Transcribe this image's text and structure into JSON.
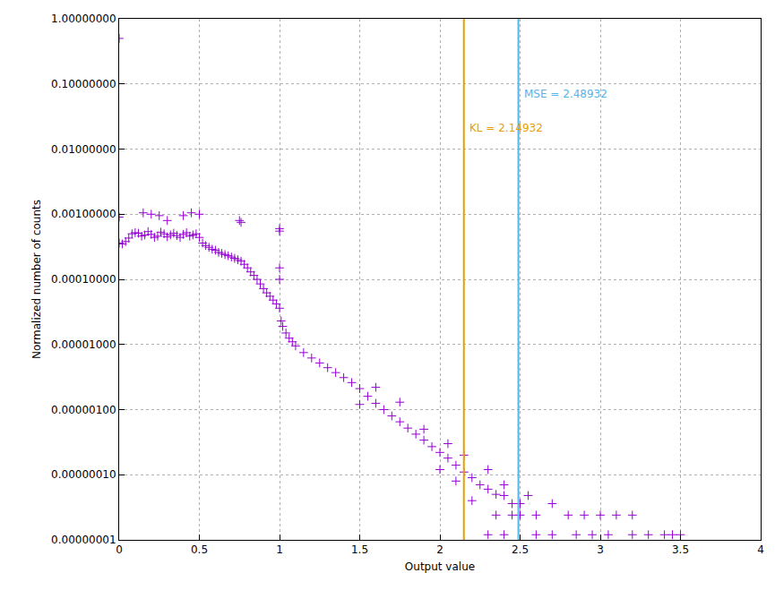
{
  "chart_data": {
    "type": "scatter",
    "x_label": "Output value",
    "y_label": "Normalized number of counts",
    "color": "#9400d3",
    "marker": "cross",
    "log": "y",
    "grid": true,
    "xlim": [
      0,
      4
    ],
    "xticks": [
      0,
      0.5,
      1,
      1.5,
      2,
      2.5,
      3,
      3.5,
      4
    ],
    "ylim": [
      1e-08,
      1
    ],
    "yticks": [
      {
        "value": 1e-08,
        "label": "0.00000001"
      },
      {
        "value": 1e-07,
        "label": "0.00000010"
      },
      {
        "value": 1e-06,
        "label": "0.00000100"
      },
      {
        "value": 1e-05,
        "label": "0.00001000"
      },
      {
        "value": 0.0001,
        "label": "0.00010000"
      },
      {
        "value": 0.001,
        "label": "0.00100000"
      },
      {
        "value": 0.01,
        "label": "0.01000000"
      },
      {
        "value": 0.1,
        "label": "0.10000000"
      },
      {
        "value": 1,
        "label": "1.00000000"
      }
    ],
    "annotations": [
      {
        "text": "KL = 2.14932",
        "x": 2.14932,
        "color": "#e69f00"
      },
      {
        "text": "MSE = 2.48932",
        "x": 2.48932,
        "color": "#56b4e9"
      }
    ],
    "x": [
      0,
      0.02,
      0.04,
      0.06,
      0.08,
      0.1,
      0.12,
      0.14,
      0.16,
      0.18,
      0.2,
      0.22,
      0.24,
      0.26,
      0.28,
      0.3,
      0.32,
      0.34,
      0.36,
      0.38,
      0.4,
      0.42,
      0.44,
      0.46,
      0.48,
      0.5,
      0.52,
      0.54,
      0.56,
      0.58,
      0.6,
      0.62,
      0.64,
      0.66,
      0.68,
      0.7,
      0.72,
      0.74,
      0.76,
      0.78,
      0.8,
      0.82,
      0.84,
      0.86,
      0.88,
      0.9,
      0.92,
      0.94,
      0.96,
      0.98,
      1.0,
      1.01,
      1.02,
      1.04,
      1.06,
      1.08,
      1.1,
      1.15,
      1.2,
      1.25,
      1.3,
      1.35,
      1.4,
      1.45,
      1.5,
      1.55,
      1.6,
      1.65,
      1.7,
      1.75,
      1.8,
      1.85,
      1.9,
      1.95,
      2.0,
      2.05,
      2.1,
      2.15,
      2.2,
      2.25,
      2.3,
      2.35,
      2.4,
      2.45,
      0,
      0,
      0.15,
      0.2,
      0.25,
      0.3,
      0.4,
      0.45,
      0.5,
      0.75,
      0.76,
      1.0,
      1.0,
      1.0,
      1.0,
      1.5,
      1.6,
      1.75,
      1.9,
      2.0,
      2.05,
      2.1,
      2.15,
      2.2,
      2.3,
      2.35,
      2.4,
      2.5,
      2.5,
      2.55,
      2.6,
      2.6,
      2.7,
      2.7,
      2.8,
      2.85,
      2.9,
      2.95,
      3.0,
      3.05,
      3.1,
      3.2,
      3.2,
      3.3,
      3.4,
      3.45,
      3.5,
      2.3,
      2.4,
      2.45
    ],
    "values": [
      0.00036,
      0.00035,
      0.00038,
      0.00043,
      0.0005,
      0.00052,
      0.00051,
      0.00046,
      0.00048,
      0.00054,
      0.00049,
      0.00044,
      0.00046,
      0.00053,
      0.0005,
      0.00045,
      0.00048,
      0.00051,
      0.00047,
      0.00044,
      0.00049,
      0.00052,
      0.00046,
      0.00048,
      0.0005,
      0.00044,
      0.00036,
      0.00033,
      0.00031,
      0.00029,
      0.00028,
      0.00026,
      0.00025,
      0.00024,
      0.00023,
      0.00022,
      0.00021,
      0.0002,
      0.00019,
      0.00017,
      0.00015,
      0.00013,
      0.000115,
      0.0001,
      8.5e-05,
      7.2e-05,
      6.2e-05,
      5.5e-05,
      4.8e-05,
      4.2e-05,
      3.6e-05,
      2.3e-05,
      1.9e-05,
      1.5e-05,
      1.25e-05,
      1.1e-05,
      9.5e-06,
      7.5e-06,
      6.2e-06,
      5.2e-06,
      4.4e-06,
      3.7e-06,
      3.1e-06,
      2.6e-06,
      2.1e-06,
      1.6e-06,
      1.25e-06,
      1e-06,
      8e-07,
      6.5e-07,
      5.2e-07,
      4.2e-07,
      3.4e-07,
      2.7e-07,
      2.2e-07,
      1.8e-07,
      1.4e-07,
      1.1e-07,
      9e-08,
      7e-08,
      6e-08,
      5e-08,
      4.8e-08,
      3.6e-08,
      0.5,
      0.0009,
      0.00105,
      0.001,
      0.00095,
      0.0008,
      0.00095,
      0.00105,
      0.001,
      0.0008,
      0.00075,
      0.0006,
      0.00055,
      0.00015,
      0.0001,
      1.2e-06,
      2.2e-06,
      1.3e-06,
      5e-07,
      1.2e-07,
      3e-07,
      8e-08,
      2e-07,
      4e-08,
      1.2e-07,
      2.4e-08,
      7e-08,
      3.6e-08,
      2.4e-08,
      4.8e-08,
      2.4e-08,
      1.2e-08,
      3.6e-08,
      1.2e-08,
      2.4e-08,
      1.2e-08,
      2.4e-08,
      1.2e-08,
      2.4e-08,
      1.2e-08,
      2.4e-08,
      2.4e-08,
      1.2e-08,
      1.2e-08,
      1.2e-08,
      1.2e-08,
      1.2e-08,
      1.2e-08,
      1.2e-08,
      2.4e-08
    ]
  }
}
